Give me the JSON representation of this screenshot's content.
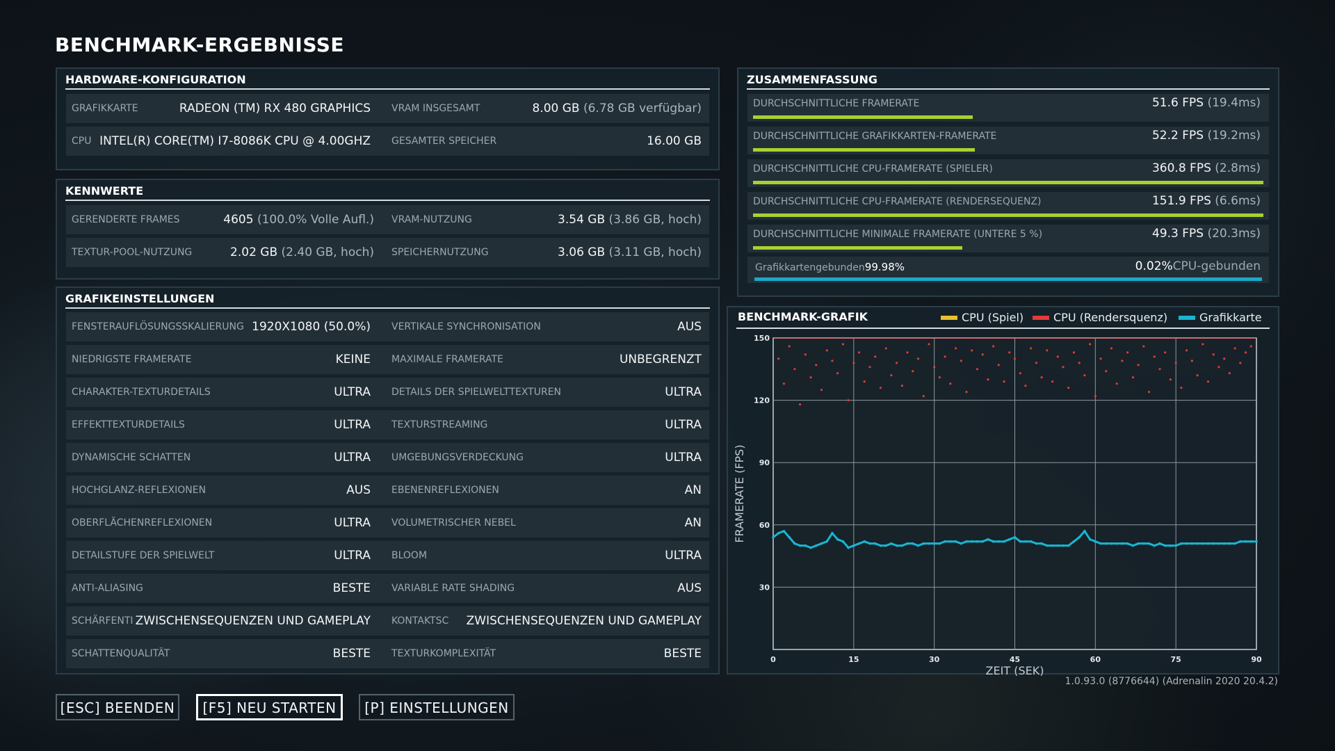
{
  "page_title": "BENCHMARK-ERGEBNISSE",
  "hardware": {
    "title": "HARDWARE-KONFIGURATION",
    "rows": [
      {
        "l1": "GRAFIKKARTE",
        "v1": "RADEON (TM) RX 480 GRAPHICS",
        "v1sub": "",
        "l2": "VRAM INSGESAMT",
        "v2": "8.00 GB",
        "v2sub": " (6.78 GB verfügbar)"
      },
      {
        "l1": "CPU",
        "v1": "INTEL(R) CORE(TM) I7-8086K CPU @ 4.00GHZ",
        "v1sub": "",
        "l2": "GESAMTER SPEICHER",
        "v2": "16.00 GB",
        "v2sub": ""
      }
    ]
  },
  "metrics": {
    "title": "KENNWERTE",
    "rows": [
      {
        "l1": "GERENDERTE FRAMES",
        "v1": "4605",
        "v1sub": " (100.0% Volle Aufl.)",
        "l2": "VRAM-NUTZUNG",
        "v2": "3.54 GB",
        "v2sub": " (3.86 GB, hoch)"
      },
      {
        "l1": "TEXTUR-POOL-NUTZUNG",
        "v1": "2.02 GB",
        "v1sub": " (2.40 GB, hoch)",
        "l2": "SPEICHERNUTZUNG",
        "v2": "3.06 GB",
        "v2sub": " (3.11 GB, hoch)"
      }
    ]
  },
  "graphics": {
    "title": "GRAFIKEINSTELLUNGEN",
    "rows": [
      {
        "l1": "FENSTERAUFLÖSUNGSSKALIERUNG",
        "v1": "1920X1080 (50.0%)",
        "l2": "VERTIKALE SYNCHRONISATION",
        "v2": "AUS"
      },
      {
        "l1": "NIEDRIGSTE FRAMERATE",
        "v1": "KEINE",
        "l2": "MAXIMALE FRAMERATE",
        "v2": "UNBEGRENZT"
      },
      {
        "l1": "CHARAKTER-TEXTURDETAILS",
        "v1": "ULTRA",
        "l2": "DETAILS DER SPIELWELTTEXTUREN",
        "v2": "ULTRA"
      },
      {
        "l1": "EFFEKTTEXTURDETAILS",
        "v1": "ULTRA",
        "l2": "TEXTURSTREAMING",
        "v2": "ULTRA"
      },
      {
        "l1": "DYNAMISCHE SCHATTEN",
        "v1": "ULTRA",
        "l2": "UMGEBUNGSVERDECKUNG",
        "v2": "ULTRA"
      },
      {
        "l1": "HOCHGLANZ-REFLEXIONEN",
        "v1": "AUS",
        "l2": "EBENENREFLEXIONEN",
        "v2": "AN"
      },
      {
        "l1": "OBERFLÄCHENREFLEXIONEN",
        "v1": "ULTRA",
        "l2": "VOLUMETRISCHER NEBEL",
        "v2": "AN"
      },
      {
        "l1": "DETAILSTUFE DER SPIELWELT",
        "v1": "ULTRA",
        "l2": "BLOOM",
        "v2": "ULTRA"
      },
      {
        "l1": "ANTI-ALIASING",
        "v1": "BESTE",
        "l2": "VARIABLE RATE SHADING",
        "v2": "AUS"
      },
      {
        "l1": "SCHÄRFENTI",
        "v1": "ZWISCHENSEQUENZEN UND GAMEPLAY",
        "l2": "KONTAKTSC",
        "v2": "ZWISCHENSEQUENZEN UND GAMEPLAY"
      },
      {
        "l1": "SCHATTENQUALITÄT",
        "v1": "BESTE",
        "l2": "TEXTURKOMPLEXITÄT",
        "v2": "BESTE"
      }
    ]
  },
  "summary": {
    "title": "ZUSAMMENFASSUNG",
    "rows": [
      {
        "label": "DURCHSCHNITTLICHE FRAMERATE",
        "value": "51.6 FPS",
        "sub": " (19.4ms)",
        "bar_fraction": 0.43
      },
      {
        "label": "DURCHSCHNITTLICHE GRAFIKKARTEN-FRAMERATE",
        "value": "52.2 FPS",
        "sub": " (19.2ms)",
        "bar_fraction": 0.435
      },
      {
        "label": "DURCHSCHNITTLICHE CPU-FRAMERATE (SPIELER)",
        "value": "360.8 FPS",
        "sub": " (2.8ms)",
        "bar_fraction": 1.0
      },
      {
        "label": "DURCHSCHNITTLICHE CPU-FRAMERATE (RENDERSEQUENZ)",
        "value": "151.9 FPS",
        "sub": " (6.6ms)",
        "bar_fraction": 1.0
      },
      {
        "label": "DURCHSCHNITTLICHE MINIMALE FRAMERATE (UNTERE 5 %)",
        "value": "49.3 FPS",
        "sub": " (20.3ms)",
        "bar_fraction": 0.41
      }
    ],
    "bound": {
      "gpu_label": "Grafikkartengebunden",
      "gpu_value": "99.98%",
      "cpu_value": "0.02%",
      "cpu_label": "CPU-gebunden"
    }
  },
  "chart_data": {
    "type": "scatter",
    "title": "BENCHMARK-GRAFIK",
    "xlabel": "ZEIT (SEK)",
    "ylabel": "FRAMERATE (FPS)",
    "xlim": [
      0,
      90
    ],
    "ylim": [
      0,
      150
    ],
    "xticks": [
      0,
      15,
      30,
      45,
      60,
      75,
      90
    ],
    "yticks": [
      30,
      60,
      90,
      120,
      150
    ],
    "grid": true,
    "legend_position": "top-right",
    "series": [
      {
        "name": "CPU (Spiel)",
        "color": "#e8c02e",
        "x": [],
        "y": []
      },
      {
        "name": "CPU (Rendersquenz)",
        "color": "#e03a3a",
        "x": [
          1,
          2,
          3,
          4,
          5,
          6,
          7,
          8,
          9,
          10,
          11,
          12,
          13,
          14,
          15,
          16,
          17,
          18,
          19,
          20,
          21,
          22,
          23,
          24,
          25,
          26,
          27,
          28,
          29,
          30,
          31,
          32,
          33,
          34,
          35,
          36,
          37,
          38,
          39,
          40,
          41,
          42,
          43,
          44,
          45,
          46,
          47,
          48,
          49,
          50,
          51,
          52,
          53,
          54,
          55,
          56,
          57,
          58,
          59,
          60,
          61,
          62,
          63,
          64,
          65,
          66,
          67,
          68,
          69,
          70,
          71,
          72,
          73,
          74,
          75,
          76,
          77,
          78,
          79,
          80,
          81,
          82,
          83,
          84,
          85,
          86,
          87,
          88,
          89
        ],
        "y": [
          140,
          128,
          146,
          135,
          118,
          142,
          131,
          137,
          125,
          144,
          139,
          133,
          147,
          120,
          138,
          143,
          129,
          136,
          141,
          126,
          145,
          132,
          138,
          127,
          143,
          134,
          140,
          122,
          147,
          136,
          131,
          141,
          128,
          145,
          139,
          124,
          144,
          135,
          142,
          130,
          146,
          137,
          129,
          143,
          140,
          133,
          127,
          145,
          138,
          131,
          144,
          129,
          141,
          136,
          126,
          143,
          138,
          132,
          147,
          122,
          140,
          134,
          145,
          128,
          139,
          143,
          131,
          137,
          146,
          124,
          141,
          135,
          143,
          130,
          138,
          126,
          144,
          139,
          132,
          147,
          129,
          142,
          136,
          140,
          133,
          145,
          138,
          143,
          146
        ]
      },
      {
        "name": "Grafikkarte",
        "color": "#19b5d1",
        "x": [
          0,
          1,
          2,
          3,
          4,
          5,
          6,
          7,
          8,
          9,
          10,
          11,
          12,
          13,
          14,
          15,
          16,
          17,
          18,
          19,
          20,
          21,
          22,
          23,
          24,
          25,
          26,
          27,
          28,
          29,
          30,
          31,
          32,
          33,
          34,
          35,
          36,
          37,
          38,
          39,
          40,
          41,
          42,
          43,
          44,
          45,
          46,
          47,
          48,
          49,
          50,
          51,
          52,
          53,
          54,
          55,
          56,
          57,
          58,
          59,
          60,
          61,
          62,
          63,
          64,
          65,
          66,
          67,
          68,
          69,
          70,
          71,
          72,
          73,
          74,
          75,
          76,
          77,
          78,
          79,
          80,
          81,
          82,
          83,
          84,
          85,
          86,
          87,
          88,
          89,
          90
        ],
        "y": [
          54,
          56,
          57,
          54,
          51,
          50,
          50,
          49,
          50,
          51,
          52,
          56,
          53,
          52,
          49,
          50,
          51,
          52,
          51,
          51,
          50,
          50,
          51,
          50,
          50,
          51,
          51,
          50,
          51,
          51,
          51,
          51,
          52,
          52,
          52,
          51,
          52,
          52,
          52,
          52,
          53,
          52,
          52,
          52,
          53,
          54,
          52,
          52,
          52,
          51,
          51,
          50,
          50,
          50,
          50,
          50,
          52,
          54,
          57,
          53,
          52,
          51,
          51,
          51,
          51,
          51,
          51,
          50,
          51,
          51,
          51,
          50,
          51,
          50,
          50,
          50,
          51,
          51,
          51,
          51,
          51,
          51,
          51,
          51,
          51,
          51,
          51,
          52,
          52,
          52,
          52
        ]
      }
    ]
  },
  "buttons": {
    "quit": "[ESC] BEENDEN",
    "restart": "[F5] NEU STARTEN",
    "settings": "[P] EINSTELLUNGEN"
  },
  "version": "1.0.93.0 (8776644) (Adrenalin 2020 20.4.2)"
}
